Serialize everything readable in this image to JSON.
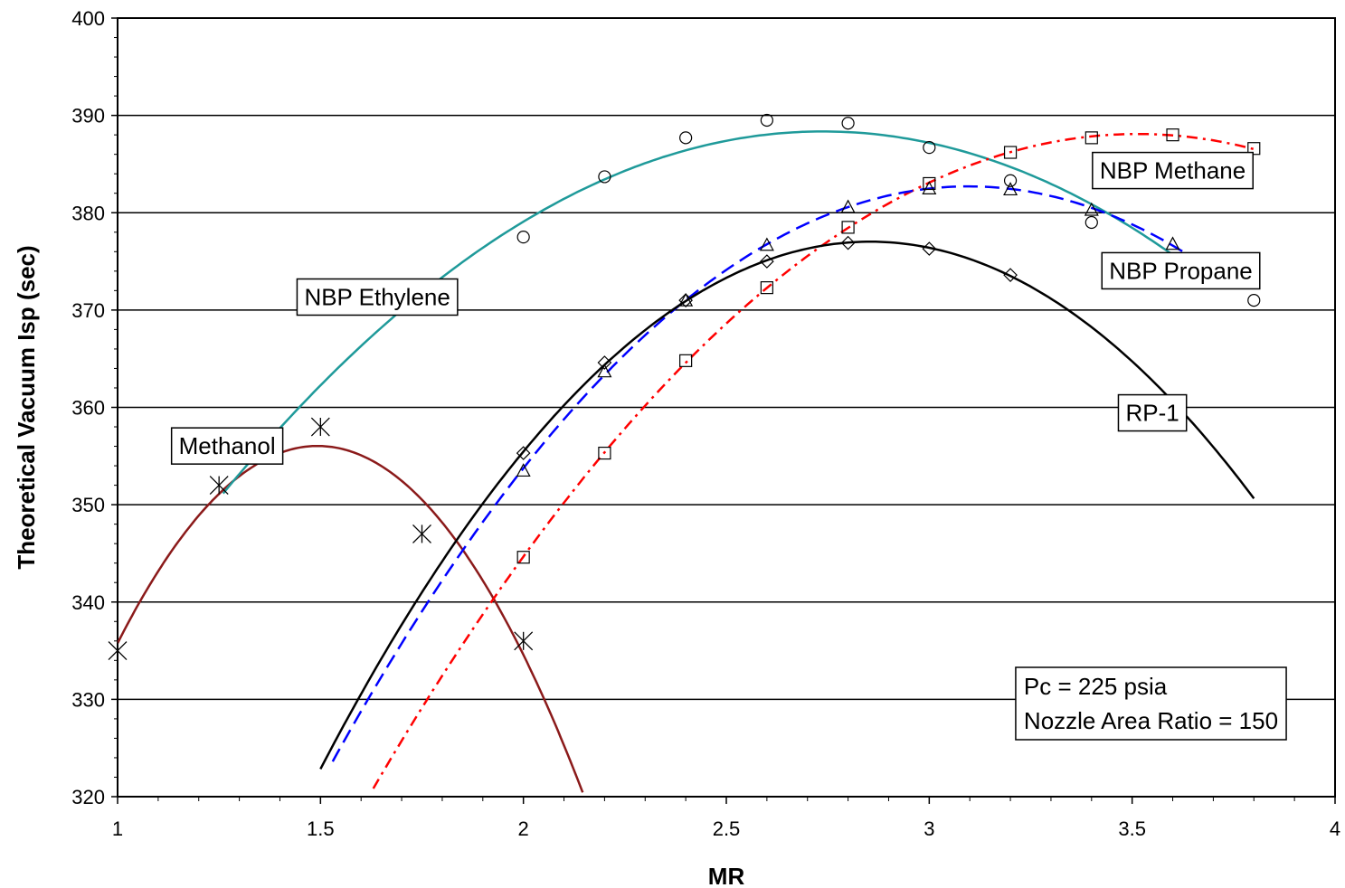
{
  "chart_data": {
    "type": "line",
    "xlabel": "MR",
    "ylabel": "Theoretical Vacuum Isp (sec)",
    "xlim": [
      1,
      4
    ],
    "ylim": [
      320,
      400
    ],
    "x_ticks": [
      "1",
      "1.5",
      "2",
      "2.5",
      "3",
      "3.5",
      "4"
    ],
    "y_ticks": [
      "320",
      "330",
      "340",
      "350",
      "360",
      "370",
      "380",
      "390",
      "400"
    ],
    "grid": "horizontal",
    "series": [
      {
        "name": "Methanol",
        "color": "#8b1a1a",
        "line_style": "solid",
        "marker": "asterisk",
        "curve_range": [
          1.0,
          2.2
        ],
        "points": [
          [
            1.0,
            335
          ],
          [
            1.25,
            352
          ],
          [
            1.5,
            358
          ],
          [
            1.75,
            347
          ],
          [
            2.0,
            336
          ]
        ]
      },
      {
        "name": "NBP Ethylene",
        "color": "#1f9a9a",
        "line_style": "solid",
        "marker": "circle",
        "curve_range": [
          1.26,
          3.62
        ],
        "points": [
          [
            2.0,
            377.5
          ],
          [
            2.2,
            383.7
          ],
          [
            2.4,
            387.7
          ],
          [
            2.6,
            389.5
          ],
          [
            2.8,
            389.2
          ],
          [
            3.0,
            386.7
          ],
          [
            3.2,
            383.3
          ],
          [
            3.4,
            379
          ],
          [
            3.6,
            375.2
          ],
          [
            3.8,
            371
          ]
        ]
      },
      {
        "name": "NBP Methane",
        "color": "#ff0000",
        "line_style": "dash-dot",
        "marker": "square",
        "curve_range": [
          1.63,
          3.8
        ],
        "points": [
          [
            2.0,
            344.6
          ],
          [
            2.2,
            355.3
          ],
          [
            2.4,
            364.8
          ],
          [
            2.6,
            372.3
          ],
          [
            2.8,
            378.5
          ],
          [
            3.0,
            383
          ],
          [
            3.2,
            386.2
          ],
          [
            3.4,
            387.7
          ],
          [
            3.6,
            388
          ],
          [
            3.8,
            386.6
          ]
        ]
      },
      {
        "name": "NBP Propane",
        "color": "#0000ff",
        "line_style": "dashed",
        "marker": "triangle",
        "curve_range": [
          1.53,
          3.65
        ],
        "points": [
          [
            2.0,
            353.5
          ],
          [
            2.2,
            363.7
          ],
          [
            2.4,
            371
          ],
          [
            2.6,
            376.7
          ],
          [
            2.8,
            380.6
          ],
          [
            3.0,
            382.5
          ],
          [
            3.2,
            382.4
          ],
          [
            3.4,
            380.3
          ],
          [
            3.6,
            376.8
          ]
        ]
      },
      {
        "name": "RP-1",
        "color": "#000000",
        "line_style": "solid",
        "marker": "diamond",
        "curve_range": [
          1.5,
          3.8
        ],
        "points": [
          [
            2.0,
            355.3
          ],
          [
            2.2,
            364.6
          ],
          [
            2.4,
            371
          ],
          [
            2.6,
            375
          ],
          [
            2.8,
            376.9
          ],
          [
            3.0,
            376.3
          ],
          [
            3.2,
            373.6
          ]
        ]
      }
    ],
    "annotations": [
      {
        "name": "NBP Ethylene",
        "anchor_x": 1.64,
        "anchor_y": 370.5
      },
      {
        "name": "Methanol",
        "anchor_x": 1.27,
        "anchor_y": 355.2
      },
      {
        "name": "NBP Methane",
        "anchor_x": 3.6,
        "anchor_y": 383.5
      },
      {
        "name": "NBP Propane",
        "anchor_x": 3.62,
        "anchor_y": 373.2
      },
      {
        "name": "RP-1",
        "anchor_x": 3.55,
        "anchor_y": 358.6
      }
    ],
    "info_box": {
      "lines": [
        "Pc = 225 psia",
        "Nozzle Area Ratio = 150"
      ],
      "anchor_x": 3.3,
      "anchor_y": 330.5
    }
  }
}
